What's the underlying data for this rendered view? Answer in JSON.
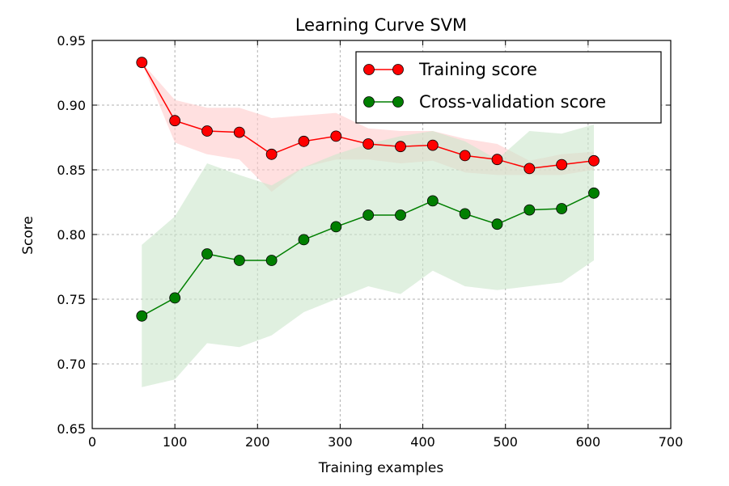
{
  "chart_data": {
    "type": "line",
    "title": "Learning Curve SVM",
    "xlabel": "Training examples",
    "ylabel": "Score",
    "xlim": [
      0,
      700
    ],
    "ylim": [
      0.65,
      0.95
    ],
    "xticks": [
      "0",
      "100",
      "200",
      "300",
      "400",
      "500",
      "600",
      "700"
    ],
    "yticks": [
      "0.65",
      "0.70",
      "0.75",
      "0.80",
      "0.85",
      "0.90",
      "0.95"
    ],
    "grid": true,
    "legend_position": "top-right",
    "x": [
      60,
      100,
      139,
      178,
      217,
      256,
      295,
      334,
      373,
      412,
      451,
      490,
      529,
      568,
      607
    ],
    "series": [
      {
        "name": "Training score",
        "color": "#ff0000",
        "band_color": "#ffcccc",
        "values": [
          0.933,
          0.888,
          0.88,
          0.879,
          0.862,
          0.872,
          0.876,
          0.87,
          0.868,
          0.869,
          0.861,
          0.858,
          0.851,
          0.854,
          0.857
        ],
        "upper": [
          0.933,
          0.904,
          0.898,
          0.898,
          0.89,
          0.892,
          0.894,
          0.882,
          0.88,
          0.88,
          0.874,
          0.87,
          0.857,
          0.862,
          0.864
        ],
        "lower": [
          0.933,
          0.871,
          0.862,
          0.858,
          0.833,
          0.852,
          0.858,
          0.858,
          0.855,
          0.857,
          0.848,
          0.846,
          0.846,
          0.846,
          0.85
        ]
      },
      {
        "name": "Cross-validation score",
        "color": "#007f00",
        "band_color": "#cce6cc",
        "values": [
          0.737,
          0.751,
          0.785,
          0.78,
          0.78,
          0.796,
          0.806,
          0.815,
          0.815,
          0.826,
          0.816,
          0.808,
          0.819,
          0.82,
          0.832
        ],
        "upper": [
          0.792,
          0.814,
          0.855,
          0.846,
          0.838,
          0.852,
          0.862,
          0.87,
          0.876,
          0.88,
          0.872,
          0.858,
          0.88,
          0.878,
          0.885
        ],
        "lower": [
          0.682,
          0.688,
          0.716,
          0.713,
          0.722,
          0.74,
          0.75,
          0.76,
          0.754,
          0.772,
          0.76,
          0.757,
          0.76,
          0.763,
          0.78
        ]
      }
    ]
  }
}
